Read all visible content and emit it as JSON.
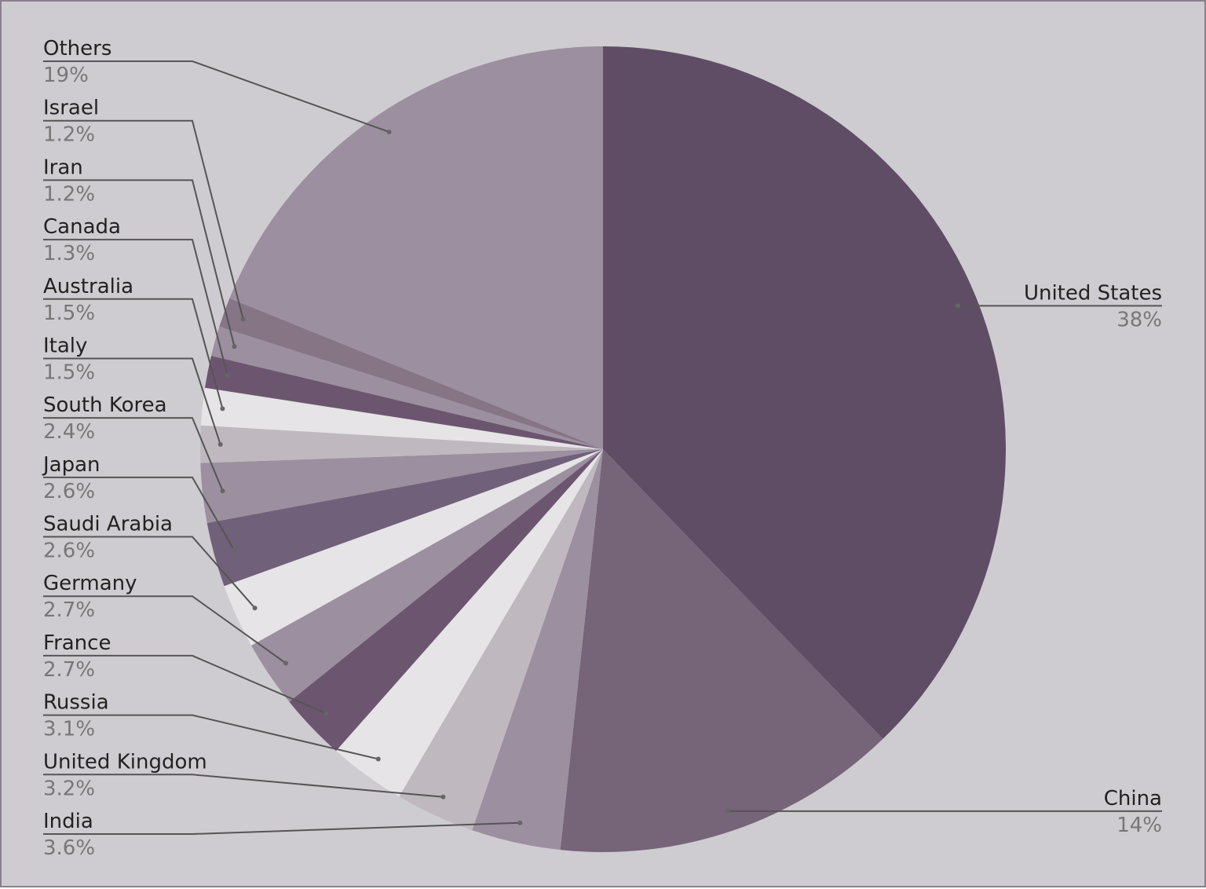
{
  "chart_data": {
    "type": "pie",
    "categories": [
      "United States",
      "China",
      "India",
      "United Kingdom",
      "Russia",
      "France",
      "Germany",
      "Saudi Arabia",
      "Japan",
      "South Korea",
      "Italy",
      "Australia",
      "Canada",
      "Iran",
      "Israel",
      "Others"
    ],
    "values": [
      38,
      14,
      3.6,
      3.2,
      3.1,
      2.7,
      2.7,
      2.6,
      2.6,
      2.4,
      1.5,
      1.5,
      1.3,
      1.2,
      1.2,
      19
    ],
    "value_labels": [
      "38%",
      "14%",
      "3.6%",
      "3.2%",
      "3.1%",
      "2.7%",
      "2.7%",
      "2.6%",
      "2.6%",
      "2.4%",
      "1.5%",
      "1.5%",
      "1.3%",
      "1.2%",
      "1.2%",
      "19%"
    ],
    "colors": [
      "#5f4d66",
      "#766479",
      "#9c8f9f",
      "#bfb9bf",
      "#e6e4e6",
      "#6c566f",
      "#9c8f9f",
      "#e6e4e6",
      "#71607a",
      "#9c8f9f",
      "#bfb9bf",
      "#e6e4e6",
      "#6c566f",
      "#9c8f9f",
      "#857585",
      "#9c8f9f"
    ]
  }
}
